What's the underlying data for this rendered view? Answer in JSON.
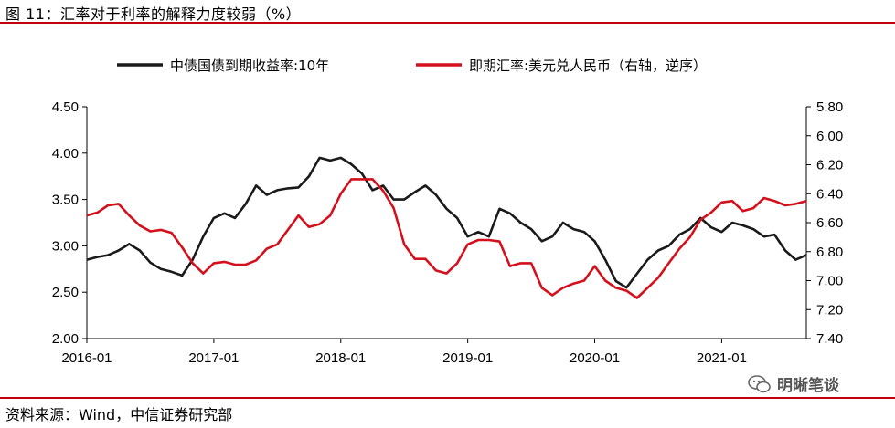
{
  "header": {
    "title": "图 11：汇率对于利率的解释力度较弱（%）"
  },
  "footer": {
    "source": "资料来源：Wind，中信证券研究部"
  },
  "watermark": {
    "text": "明晰笔谈",
    "icon": "wechat-icon"
  },
  "colors": {
    "bond": "#1a1a1a",
    "fx": "#d4101c",
    "accent_rule": "#c0000c"
  },
  "chart_data": {
    "type": "line",
    "x_ticks": [
      "2016-01",
      "2017-01",
      "2018-01",
      "2019-01",
      "2020-01",
      "2021-01"
    ],
    "x_range": [
      "2016-01",
      "2021-09"
    ],
    "y_left": {
      "ticks": [
        "2.00",
        "2.50",
        "3.00",
        "3.50",
        "4.00",
        "4.50"
      ],
      "range": [
        2.0,
        4.5
      ]
    },
    "y_right": {
      "ticks": [
        "5.80",
        "6.00",
        "6.20",
        "6.40",
        "6.60",
        "6.80",
        "7.00",
        "7.20",
        "7.40"
      ],
      "range": [
        5.8,
        7.4
      ],
      "reversed": true
    },
    "legend_position": "top",
    "grid": false,
    "series": [
      {
        "name": "中债国债到期收益率:10年",
        "axis": "left",
        "points": [
          [
            "2016-01",
            2.85
          ],
          [
            "2016-02",
            2.88
          ],
          [
            "2016-03",
            2.9
          ],
          [
            "2016-04",
            2.95
          ],
          [
            "2016-05",
            3.02
          ],
          [
            "2016-06",
            2.95
          ],
          [
            "2016-07",
            2.82
          ],
          [
            "2016-08",
            2.75
          ],
          [
            "2016-09",
            2.72
          ],
          [
            "2016-10",
            2.68
          ],
          [
            "2016-11",
            2.85
          ],
          [
            "2016-12",
            3.1
          ],
          [
            "2017-01",
            3.3
          ],
          [
            "2017-02",
            3.35
          ],
          [
            "2017-03",
            3.3
          ],
          [
            "2017-04",
            3.45
          ],
          [
            "2017-05",
            3.65
          ],
          [
            "2017-06",
            3.55
          ],
          [
            "2017-07",
            3.6
          ],
          [
            "2017-08",
            3.62
          ],
          [
            "2017-09",
            3.63
          ],
          [
            "2017-10",
            3.75
          ],
          [
            "2017-11",
            3.95
          ],
          [
            "2017-12",
            3.92
          ],
          [
            "2018-01",
            3.95
          ],
          [
            "2018-02",
            3.88
          ],
          [
            "2018-03",
            3.78
          ],
          [
            "2018-04",
            3.6
          ],
          [
            "2018-05",
            3.65
          ],
          [
            "2018-06",
            3.5
          ],
          [
            "2018-07",
            3.5
          ],
          [
            "2018-08",
            3.58
          ],
          [
            "2018-09",
            3.65
          ],
          [
            "2018-10",
            3.55
          ],
          [
            "2018-11",
            3.4
          ],
          [
            "2018-12",
            3.3
          ],
          [
            "2019-01",
            3.1
          ],
          [
            "2019-02",
            3.15
          ],
          [
            "2019-03",
            3.1
          ],
          [
            "2019-04",
            3.4
          ],
          [
            "2019-05",
            3.35
          ],
          [
            "2019-06",
            3.25
          ],
          [
            "2019-07",
            3.18
          ],
          [
            "2019-08",
            3.05
          ],
          [
            "2019-09",
            3.1
          ],
          [
            "2019-10",
            3.25
          ],
          [
            "2019-11",
            3.18
          ],
          [
            "2019-12",
            3.15
          ],
          [
            "2020-01",
            3.05
          ],
          [
            "2020-02",
            2.85
          ],
          [
            "2020-03",
            2.62
          ],
          [
            "2020-04",
            2.55
          ],
          [
            "2020-05",
            2.7
          ],
          [
            "2020-06",
            2.85
          ],
          [
            "2020-07",
            2.95
          ],
          [
            "2020-08",
            3.0
          ],
          [
            "2020-09",
            3.12
          ],
          [
            "2020-10",
            3.18
          ],
          [
            "2020-11",
            3.3
          ],
          [
            "2020-12",
            3.2
          ],
          [
            "2021-01",
            3.15
          ],
          [
            "2021-02",
            3.25
          ],
          [
            "2021-03",
            3.22
          ],
          [
            "2021-04",
            3.18
          ],
          [
            "2021-05",
            3.1
          ],
          [
            "2021-06",
            3.12
          ],
          [
            "2021-07",
            2.95
          ],
          [
            "2021-08",
            2.85
          ],
          [
            "2021-09",
            2.9
          ]
        ]
      },
      {
        "name": "即期汇率:美元兑人民币（右轴，逆序）",
        "axis": "right",
        "points": [
          [
            "2016-01",
            6.55
          ],
          [
            "2016-02",
            6.53
          ],
          [
            "2016-03",
            6.48
          ],
          [
            "2016-04",
            6.47
          ],
          [
            "2016-05",
            6.55
          ],
          [
            "2016-06",
            6.62
          ],
          [
            "2016-07",
            6.66
          ],
          [
            "2016-08",
            6.65
          ],
          [
            "2016-09",
            6.67
          ],
          [
            "2016-10",
            6.77
          ],
          [
            "2016-11",
            6.88
          ],
          [
            "2016-12",
            6.95
          ],
          [
            "2017-01",
            6.88
          ],
          [
            "2017-02",
            6.87
          ],
          [
            "2017-03",
            6.89
          ],
          [
            "2017-04",
            6.89
          ],
          [
            "2017-05",
            6.86
          ],
          [
            "2017-06",
            6.78
          ],
          [
            "2017-07",
            6.75
          ],
          [
            "2017-08",
            6.65
          ],
          [
            "2017-09",
            6.55
          ],
          [
            "2017-10",
            6.63
          ],
          [
            "2017-11",
            6.61
          ],
          [
            "2017-12",
            6.55
          ],
          [
            "2018-01",
            6.4
          ],
          [
            "2018-02",
            6.3
          ],
          [
            "2018-03",
            6.3
          ],
          [
            "2018-04",
            6.3
          ],
          [
            "2018-05",
            6.38
          ],
          [
            "2018-06",
            6.5
          ],
          [
            "2018-07",
            6.75
          ],
          [
            "2018-08",
            6.85
          ],
          [
            "2018-09",
            6.85
          ],
          [
            "2018-10",
            6.93
          ],
          [
            "2018-11",
            6.95
          ],
          [
            "2018-12",
            6.88
          ],
          [
            "2019-01",
            6.75
          ],
          [
            "2019-02",
            6.72
          ],
          [
            "2019-03",
            6.72
          ],
          [
            "2019-04",
            6.73
          ],
          [
            "2019-05",
            6.9
          ],
          [
            "2019-06",
            6.88
          ],
          [
            "2019-07",
            6.88
          ],
          [
            "2019-08",
            7.05
          ],
          [
            "2019-09",
            7.1
          ],
          [
            "2019-10",
            7.05
          ],
          [
            "2019-11",
            7.02
          ],
          [
            "2019-12",
            7.0
          ],
          [
            "2020-01",
            6.9
          ],
          [
            "2020-02",
            7.0
          ],
          [
            "2020-03",
            7.05
          ],
          [
            "2020-04",
            7.07
          ],
          [
            "2020-05",
            7.12
          ],
          [
            "2020-06",
            7.05
          ],
          [
            "2020-07",
            6.98
          ],
          [
            "2020-08",
            6.88
          ],
          [
            "2020-09",
            6.78
          ],
          [
            "2020-10",
            6.7
          ],
          [
            "2020-11",
            6.58
          ],
          [
            "2020-12",
            6.53
          ],
          [
            "2021-01",
            6.46
          ],
          [
            "2021-02",
            6.45
          ],
          [
            "2021-03",
            6.52
          ],
          [
            "2021-04",
            6.5
          ],
          [
            "2021-05",
            6.43
          ],
          [
            "2021-06",
            6.45
          ],
          [
            "2021-07",
            6.48
          ],
          [
            "2021-08",
            6.47
          ],
          [
            "2021-09",
            6.45
          ]
        ]
      }
    ]
  }
}
